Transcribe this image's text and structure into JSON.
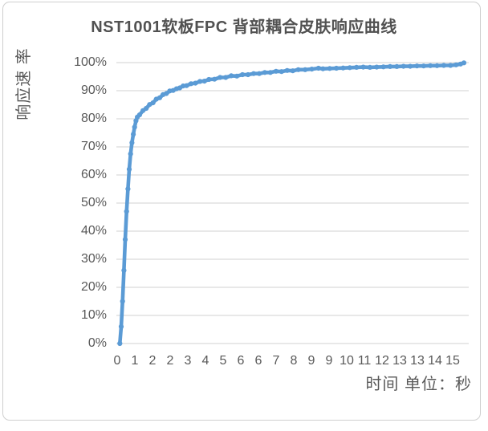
{
  "chart_data": {
    "type": "line",
    "title": "NST1001软板FPC 背部耦合皮肤响应曲线",
    "xlabel": "时间 单位：秒",
    "ylabel": "响应速 率",
    "legend": "none",
    "grid": "horizontal-only",
    "marker": "circle",
    "ylim": [
      0,
      100
    ],
    "y_tick_labels": [
      "100%",
      "90%",
      "80%",
      "70%",
      "60%",
      "50%",
      "40%",
      "30%",
      "20%",
      "10%",
      "0%"
    ],
    "x_tick_labels": [
      "0",
      "1",
      "2",
      "2",
      "3",
      "4",
      "5",
      "6",
      "6",
      "7",
      "8",
      "9",
      "9",
      "10",
      "11",
      "12",
      "13",
      "13",
      "14",
      "15"
    ],
    "x_range_seconds": [
      0,
      15.5
    ],
    "series": [
      {
        "name": "响应速率",
        "x": [
          0.12,
          0.18,
          0.24,
          0.3,
          0.36,
          0.42,
          0.48,
          0.54,
          0.6,
          0.66,
          0.72,
          0.78,
          0.84,
          0.9,
          1.0,
          1.15,
          1.3,
          1.45,
          1.6,
          1.75,
          1.9,
          2.05,
          2.2,
          2.35,
          2.5,
          2.65,
          2.8,
          2.95,
          3.1,
          3.3,
          3.5,
          3.7,
          3.9,
          4.1,
          4.35,
          4.6,
          4.85,
          5.1,
          5.35,
          5.6,
          5.85,
          6.1,
          6.35,
          6.6,
          6.85,
          7.1,
          7.35,
          7.6,
          7.85,
          8.1,
          8.4,
          8.7,
          9.0,
          9.2,
          9.5,
          9.8,
          10.1,
          10.4,
          10.7,
          11.0,
          11.3,
          11.6,
          11.9,
          12.2,
          12.5,
          12.8,
          13.1,
          13.4,
          13.7,
          14.0,
          14.3,
          14.6,
          14.9,
          15.15,
          15.35,
          15.5
        ],
        "y": [
          0,
          6,
          15,
          26,
          37,
          47,
          55,
          62,
          67.5,
          71.5,
          74.5,
          77,
          79.3,
          80.6,
          81.4,
          82.9,
          83.7,
          85.1,
          85.7,
          87.0,
          87.5,
          88.6,
          89.0,
          89.9,
          90.1,
          90.7,
          91.0,
          91.7,
          91.8,
          92.5,
          92.7,
          93.3,
          93.4,
          94.0,
          94.1,
          94.7,
          94.7,
          95.3,
          95.2,
          95.7,
          95.7,
          96.1,
          96.1,
          96.5,
          96.5,
          96.9,
          96.8,
          97.2,
          97.1,
          97.5,
          97.5,
          97.7,
          98.0,
          97.8,
          97.9,
          98.0,
          98.1,
          98.2,
          98.3,
          98.4,
          98.3,
          98.4,
          98.5,
          98.6,
          98.6,
          98.7,
          98.7,
          98.8,
          98.8,
          98.9,
          98.9,
          99.0,
          99.0,
          99.2,
          99.5,
          99.9
        ]
      }
    ],
    "colors": {
      "line": "#5B9BD5",
      "grid": "#D9D9D9",
      "text": "#595959",
      "title": "#515151",
      "frame_border": "#CFCFCF",
      "background": "#FFFFFF"
    }
  }
}
